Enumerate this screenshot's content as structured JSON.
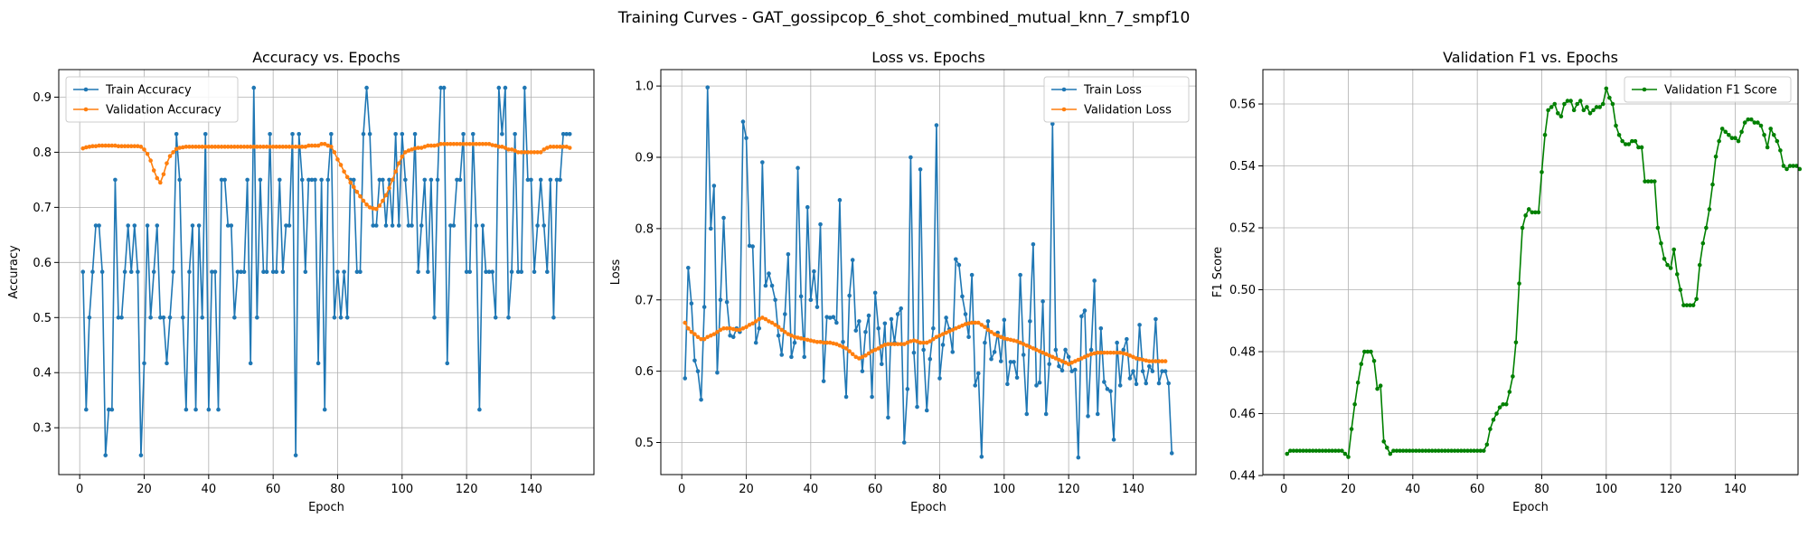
{
  "suptitle": "Training Curves - GAT_gossipcop_6_shot_combined_mutual_knn_7_smpf10",
  "chart_data": [
    {
      "type": "line",
      "title": "Accuracy vs. Epochs",
      "xlabel": "Epoch",
      "ylabel": "Accuracy",
      "xlim": [
        -6.5,
        159.5
      ],
      "ylim": [
        0.215,
        0.95
      ],
      "xticks": [
        0,
        20,
        40,
        60,
        80,
        100,
        120,
        140
      ],
      "yticks": [
        0.3,
        0.4,
        0.5,
        0.6,
        0.7,
        0.8,
        0.9
      ],
      "tick_decimals": 1,
      "grid": true,
      "legend_position": "upper-left",
      "series": [
        {
          "name": "Train Accuracy",
          "color": "#1f77b4",
          "x_start": 1,
          "values": [
            0.583,
            0.333,
            0.5,
            0.583,
            0.667,
            0.667,
            0.583,
            0.25,
            0.333,
            0.333,
            0.75,
            0.5,
            0.5,
            0.583,
            0.667,
            0.583,
            0.667,
            0.583,
            0.25,
            0.417,
            0.667,
            0.5,
            0.583,
            0.667,
            0.5,
            0.5,
            0.417,
            0.5,
            0.583,
            0.833,
            0.75,
            0.5,
            0.333,
            0.583,
            0.667,
            0.333,
            0.667,
            0.5,
            0.833,
            0.333,
            0.583,
            0.583,
            0.333,
            0.75,
            0.75,
            0.667,
            0.667,
            0.5,
            0.583,
            0.583,
            0.583,
            0.75,
            0.417,
            0.917,
            0.5,
            0.75,
            0.583,
            0.583,
            0.833,
            0.583,
            0.583,
            0.75,
            0.583,
            0.667,
            0.667,
            0.833,
            0.25,
            0.833,
            0.75,
            0.583,
            0.75,
            0.75,
            0.75,
            0.417,
            0.75,
            0.333,
            0.75,
            0.833,
            0.5,
            0.583,
            0.5,
            0.583,
            0.5,
            0.75,
            0.75,
            0.583,
            0.583,
            0.833,
            0.917,
            0.833,
            0.667,
            0.667,
            0.75,
            0.75,
            0.667,
            0.75,
            0.667,
            0.833,
            0.667,
            0.833,
            0.75,
            0.667,
            0.667,
            0.833,
            0.583,
            0.667,
            0.75,
            0.583,
            0.75,
            0.5,
            0.75,
            0.917,
            0.917,
            0.417,
            0.667,
            0.667,
            0.75,
            0.75,
            0.833,
            0.583,
            0.583,
            0.833,
            0.667,
            0.333,
            0.667,
            0.583,
            0.583,
            0.583,
            0.5,
            0.917,
            0.833,
            0.917,
            0.5,
            0.583,
            0.833,
            0.583,
            0.583,
            0.917,
            0.75,
            0.75,
            0.583,
            0.667,
            0.75,
            0.667,
            0.583,
            0.75,
            0.5,
            0.75,
            0.75,
            0.833,
            0.833,
            0.833
          ]
        },
        {
          "name": "Validation Accuracy",
          "color": "#ff7f0e",
          "x_start": 1,
          "values": [
            0.807,
            0.809,
            0.81,
            0.811,
            0.811,
            0.812,
            0.812,
            0.812,
            0.812,
            0.812,
            0.812,
            0.811,
            0.811,
            0.811,
            0.811,
            0.811,
            0.811,
            0.811,
            0.81,
            0.805,
            0.797,
            0.785,
            0.767,
            0.753,
            0.745,
            0.76,
            0.78,
            0.793,
            0.8,
            0.806,
            0.808,
            0.809,
            0.81,
            0.81,
            0.81,
            0.81,
            0.81,
            0.81,
            0.81,
            0.81,
            0.81,
            0.81,
            0.81,
            0.81,
            0.81,
            0.81,
            0.81,
            0.81,
            0.81,
            0.81,
            0.81,
            0.81,
            0.81,
            0.81,
            0.81,
            0.81,
            0.81,
            0.81,
            0.81,
            0.81,
            0.81,
            0.81,
            0.81,
            0.81,
            0.81,
            0.81,
            0.81,
            0.81,
            0.81,
            0.81,
            0.812,
            0.812,
            0.812,
            0.812,
            0.815,
            0.815,
            0.812,
            0.81,
            0.8,
            0.787,
            0.777,
            0.765,
            0.755,
            0.745,
            0.737,
            0.728,
            0.72,
            0.712,
            0.705,
            0.7,
            0.698,
            0.697,
            0.703,
            0.712,
            0.722,
            0.735,
            0.75,
            0.765,
            0.78,
            0.792,
            0.8,
            0.803,
            0.805,
            0.807,
            0.808,
            0.808,
            0.81,
            0.812,
            0.812,
            0.812,
            0.813,
            0.815,
            0.815,
            0.815,
            0.815,
            0.815,
            0.815,
            0.815,
            0.815,
            0.815,
            0.815,
            0.815,
            0.815,
            0.815,
            0.815,
            0.815,
            0.815,
            0.813,
            0.812,
            0.81,
            0.81,
            0.808,
            0.805,
            0.805,
            0.803,
            0.8,
            0.8,
            0.8,
            0.8,
            0.8,
            0.8,
            0.8,
            0.8,
            0.805,
            0.808,
            0.81,
            0.81,
            0.81,
            0.81,
            0.81,
            0.81,
            0.808
          ]
        }
      ]
    },
    {
      "type": "line",
      "title": "Loss vs. Epochs",
      "xlabel": "Epoch",
      "ylabel": "Loss",
      "xlim": [
        -6.5,
        159.5
      ],
      "ylim": [
        0.455,
        1.023
      ],
      "xticks": [
        0,
        20,
        40,
        60,
        80,
        100,
        120,
        140
      ],
      "yticks": [
        0.5,
        0.6,
        0.7,
        0.8,
        0.9,
        1.0
      ],
      "tick_decimals": 1,
      "grid": true,
      "legend_position": "upper-right",
      "series": [
        {
          "name": "Train Loss",
          "color": "#1f77b4",
          "x_start": 1,
          "values": [
            0.59,
            0.745,
            0.695,
            0.615,
            0.6,
            0.56,
            0.69,
            0.998,
            0.8,
            0.86,
            0.598,
            0.7,
            0.815,
            0.697,
            0.65,
            0.648,
            0.66,
            0.655,
            0.95,
            0.927,
            0.776,
            0.775,
            0.64,
            0.66,
            0.893,
            0.72,
            0.737,
            0.72,
            0.7,
            0.65,
            0.623,
            0.68,
            0.764,
            0.62,
            0.64,
            0.885,
            0.705,
            0.62,
            0.83,
            0.7,
            0.74,
            0.69,
            0.806,
            0.586,
            0.676,
            0.675,
            0.676,
            0.668,
            0.84,
            0.641,
            0.564,
            0.706,
            0.756,
            0.657,
            0.67,
            0.6,
            0.655,
            0.678,
            0.564,
            0.71,
            0.66,
            0.61,
            0.667,
            0.535,
            0.673,
            0.64,
            0.68,
            0.688,
            0.5,
            0.575,
            0.9,
            0.626,
            0.55,
            0.883,
            0.63,
            0.545,
            0.617,
            0.66,
            0.945,
            0.59,
            0.637,
            0.675,
            0.659,
            0.627,
            0.757,
            0.749,
            0.705,
            0.68,
            0.648,
            0.735,
            0.58,
            0.597,
            0.48,
            0.64,
            0.67,
            0.617,
            0.627,
            0.654,
            0.614,
            0.672,
            0.582,
            0.613,
            0.613,
            0.591,
            0.735,
            0.623,
            0.54,
            0.67,
            0.778,
            0.58,
            0.584,
            0.698,
            0.54,
            0.61,
            0.947,
            0.63,
            0.607,
            0.601,
            0.63,
            0.62,
            0.6,
            0.602,
            0.479,
            0.677,
            0.685,
            0.537,
            0.63,
            0.727,
            0.54,
            0.66,
            0.585,
            0.575,
            0.572,
            0.504,
            0.64,
            0.58,
            0.63,
            0.645,
            0.59,
            0.6,
            0.582,
            0.665,
            0.6,
            0.583,
            0.607,
            0.6,
            0.673,
            0.583,
            0.6,
            0.6,
            0.583,
            0.485
          ]
        },
        {
          "name": "Validation Loss",
          "color": "#ff7f0e",
          "x_start": 1,
          "values": [
            0.668,
            0.66,
            0.655,
            0.652,
            0.648,
            0.645,
            0.645,
            0.648,
            0.65,
            0.652,
            0.655,
            0.658,
            0.66,
            0.66,
            0.66,
            0.659,
            0.658,
            0.658,
            0.66,
            0.662,
            0.665,
            0.667,
            0.67,
            0.673,
            0.675,
            0.673,
            0.67,
            0.668,
            0.665,
            0.662,
            0.658,
            0.655,
            0.652,
            0.65,
            0.648,
            0.647,
            0.646,
            0.645,
            0.644,
            0.643,
            0.642,
            0.641,
            0.641,
            0.64,
            0.64,
            0.64,
            0.639,
            0.638,
            0.636,
            0.634,
            0.632,
            0.628,
            0.624,
            0.62,
            0.618,
            0.62,
            0.622,
            0.625,
            0.628,
            0.63,
            0.632,
            0.635,
            0.637,
            0.638,
            0.638,
            0.638,
            0.638,
            0.638,
            0.638,
            0.64,
            0.642,
            0.643,
            0.642,
            0.64,
            0.64,
            0.64,
            0.642,
            0.645,
            0.648,
            0.65,
            0.652,
            0.654,
            0.656,
            0.658,
            0.66,
            0.662,
            0.664,
            0.666,
            0.667,
            0.668,
            0.668,
            0.668,
            0.665,
            0.662,
            0.658,
            0.655,
            0.652,
            0.65,
            0.648,
            0.646,
            0.645,
            0.644,
            0.643,
            0.642,
            0.64,
            0.638,
            0.636,
            0.634,
            0.632,
            0.63,
            0.628,
            0.626,
            0.624,
            0.622,
            0.62,
            0.618,
            0.616,
            0.614,
            0.612,
            0.61,
            0.612,
            0.614,
            0.616,
            0.618,
            0.62,
            0.622,
            0.624,
            0.625,
            0.626,
            0.626,
            0.626,
            0.626,
            0.626,
            0.626,
            0.626,
            0.626,
            0.625,
            0.624,
            0.622,
            0.62,
            0.618,
            0.617,
            0.616,
            0.615,
            0.614,
            0.614,
            0.614,
            0.614,
            0.614,
            0.614
          ]
        }
      ]
    },
    {
      "type": "line",
      "title": "Validation F1 vs. Epochs",
      "xlabel": "Epoch",
      "ylabel": "F1 Score",
      "xlim": [
        -6.5,
        159.5
      ],
      "ylim": [
        0.4403,
        0.5711
      ],
      "xticks": [
        0,
        20,
        40,
        60,
        80,
        100,
        120,
        140
      ],
      "yticks": [
        0.44,
        0.46,
        0.48,
        0.5,
        0.52,
        0.54,
        0.56
      ],
      "tick_decimals": 2,
      "grid": true,
      "legend_position": "upper-right",
      "series": [
        {
          "name": "Validation F1 Score",
          "color": "#008000",
          "x_start": 1,
          "values": [
            0.447,
            0.448,
            0.448,
            0.448,
            0.448,
            0.448,
            0.448,
            0.448,
            0.448,
            0.448,
            0.448,
            0.448,
            0.448,
            0.448,
            0.448,
            0.448,
            0.448,
            0.448,
            0.447,
            0.446,
            0.455,
            0.463,
            0.47,
            0.476,
            0.48,
            0.48,
            0.48,
            0.477,
            0.468,
            0.469,
            0.451,
            0.449,
            0.447,
            0.448,
            0.448,
            0.448,
            0.448,
            0.448,
            0.448,
            0.448,
            0.448,
            0.448,
            0.448,
            0.448,
            0.448,
            0.448,
            0.448,
            0.448,
            0.448,
            0.448,
            0.448,
            0.448,
            0.448,
            0.448,
            0.448,
            0.448,
            0.448,
            0.448,
            0.448,
            0.448,
            0.448,
            0.448,
            0.45,
            0.455,
            0.458,
            0.46,
            0.462,
            0.463,
            0.463,
            0.467,
            0.472,
            0.483,
            0.502,
            0.52,
            0.524,
            0.526,
            0.525,
            0.525,
            0.525,
            0.538,
            0.55,
            0.558,
            0.559,
            0.56,
            0.557,
            0.556,
            0.56,
            0.561,
            0.561,
            0.558,
            0.56,
            0.561,
            0.558,
            0.559,
            0.557,
            0.558,
            0.559,
            0.559,
            0.56,
            0.565,
            0.562,
            0.56,
            0.553,
            0.55,
            0.548,
            0.547,
            0.547,
            0.548,
            0.548,
            0.546,
            0.546,
            0.535,
            0.535,
            0.535,
            0.535,
            0.52,
            0.515,
            0.51,
            0.508,
            0.507,
            0.513,
            0.505,
            0.5,
            0.495,
            0.495,
            0.495,
            0.495,
            0.497,
            0.508,
            0.515,
            0.52,
            0.526,
            0.534,
            0.543,
            0.548,
            0.552,
            0.551,
            0.55,
            0.549,
            0.549,
            0.548,
            0.551,
            0.554,
            0.555,
            0.555,
            0.554,
            0.554,
            0.553,
            0.55,
            0.546,
            0.552,
            0.55,
            0.548,
            0.545,
            0.54,
            0.539,
            0.54,
            0.54,
            0.54,
            0.539
          ]
        }
      ]
    }
  ]
}
